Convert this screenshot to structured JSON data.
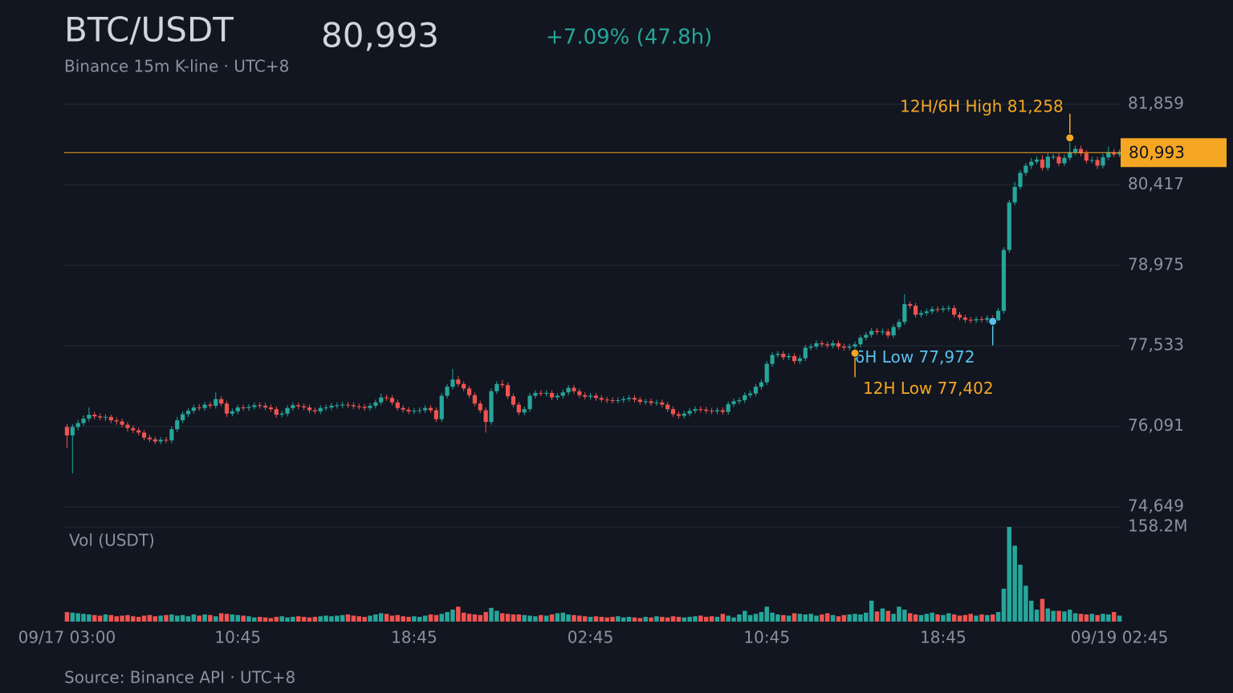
{
  "chart_data": {
    "type": "candlestick",
    "title": "BTC/USDT",
    "subtitle": "Binance 15m K-line · UTC+8",
    "last_price": {
      "value": 80993,
      "label": "80,993"
    },
    "change": "+7.09% (47.8h)",
    "source": "Source: Binance API · UTC+8",
    "colors": {
      "up": "#26a69a",
      "down": "#ef5350",
      "last": "#f5a623"
    },
    "grid": true,
    "ylim": [
      74649,
      81859
    ],
    "yticks": [
      {
        "value": 74649,
        "label": "74,649"
      },
      {
        "value": 76091,
        "label": "76,091"
      },
      {
        "value": 77533,
        "label": "77,533"
      },
      {
        "value": 78975,
        "label": "78,975"
      },
      {
        "value": 80417,
        "label": "80,417"
      },
      {
        "value": 81859,
        "label": "81,859"
      }
    ],
    "categories": [
      "09/17 03:00",
      null,
      null,
      null,
      null,
      null,
      null,
      null,
      null,
      null,
      null,
      null,
      null,
      null,
      null,
      null,
      null,
      null,
      null,
      null,
      null,
      null,
      null,
      null,
      null,
      null,
      null,
      null,
      null,
      null,
      null,
      "10:45",
      null,
      null,
      null,
      null,
      null,
      null,
      null,
      null,
      null,
      null,
      null,
      null,
      null,
      null,
      null,
      null,
      null,
      null,
      null,
      null,
      null,
      null,
      null,
      null,
      null,
      null,
      null,
      null,
      null,
      null,
      null,
      "18:45",
      null,
      null,
      null,
      null,
      null,
      null,
      null,
      null,
      null,
      null,
      null,
      null,
      null,
      null,
      null,
      null,
      null,
      null,
      null,
      null,
      null,
      null,
      null,
      null,
      null,
      null,
      null,
      null,
      null,
      null,
      null,
      "02:45",
      null,
      null,
      null,
      null,
      null,
      null,
      null,
      null,
      null,
      null,
      null,
      null,
      null,
      null,
      null,
      null,
      null,
      null,
      null,
      null,
      null,
      null,
      null,
      null,
      null,
      null,
      null,
      null,
      null,
      null,
      null,
      "10:45",
      null,
      null,
      null,
      null,
      null,
      null,
      null,
      null,
      null,
      null,
      null,
      null,
      null,
      null,
      null,
      null,
      null,
      null,
      null,
      null,
      null,
      null,
      null,
      null,
      null,
      null,
      null,
      null,
      null,
      null,
      null,
      "18:45",
      null,
      null,
      null,
      null,
      null,
      null,
      null,
      null,
      null,
      null,
      null,
      null,
      null,
      null,
      null,
      null,
      null,
      null,
      null,
      null,
      null,
      null,
      null,
      null,
      null,
      null,
      null,
      null,
      null,
      null,
      null,
      "09/19 02:45"
    ],
    "open": [
      76080,
      75930,
      76080,
      76150,
      76230,
      76300,
      76270,
      76250,
      76260,
      76200,
      76180,
      76120,
      76060,
      76020,
      75980,
      75890,
      75860,
      75820,
      75850,
      75840,
      76040,
      76200,
      76310,
      76370,
      76430,
      76420,
      76480,
      76460,
      76580,
      76500,
      76320,
      76360,
      76430,
      76420,
      76440,
      76470,
      76460,
      76430,
      76400,
      76300,
      76320,
      76420,
      76470,
      76450,
      76430,
      76380,
      76360,
      76420,
      76430,
      76460,
      76470,
      76480,
      76470,
      76450,
      76440,
      76420,
      76460,
      76520,
      76610,
      76600,
      76520,
      76420,
      76390,
      76360,
      76370,
      76380,
      76420,
      76380,
      76220,
      76640,
      76800,
      76930,
      76850,
      76770,
      76650,
      76500,
      76380,
      76170,
      76720,
      76850,
      76830,
      76630,
      76480,
      76340,
      76400,
      76640,
      76690,
      76680,
      76690,
      76610,
      76640,
      76700,
      76780,
      76720,
      76650,
      76620,
      76640,
      76600,
      76570,
      76560,
      76550,
      76560,
      76580,
      76600,
      76570,
      76530,
      76540,
      76510,
      76520,
      76480,
      76400,
      76310,
      76280,
      76320,
      76370,
      76400,
      76390,
      76370,
      76360,
      76380,
      76350,
      76490,
      76540,
      76560,
      76650,
      76680,
      76800,
      76880,
      77210,
      77370,
      77390,
      77330,
      77350,
      77260,
      77310,
      77500,
      77520,
      77580,
      77560,
      77540,
      77580,
      77520,
      77500,
      77520,
      77560,
      77680,
      77730,
      77800,
      77780,
      77790,
      77720,
      77870,
      77960,
      78280,
      78250,
      78090,
      78120,
      78150,
      78190,
      78180,
      78200,
      78210,
      78090,
      78040,
      78000,
      77990,
      78010,
      78000,
      78030,
      77990,
      78160,
      79250,
      80100,
      80380,
      80630,
      80760,
      80830,
      80870,
      80720,
      80920,
      80920,
      80800,
      80900,
      81000,
      81060,
      80980,
      80850,
      80860,
      80760,
      80910,
      81000,
      80960
    ],
    "high": [
      76140,
      76130,
      76210,
      76290,
      76430,
      76350,
      76320,
      76310,
      76300,
      76250,
      76230,
      76170,
      76110,
      76070,
      76030,
      75940,
      75910,
      75900,
      75900,
      76090,
      76260,
      76360,
      76420,
      76480,
      76490,
      76530,
      76530,
      76700,
      76630,
      76550,
      76410,
      76480,
      76480,
      76490,
      76520,
      76520,
      76510,
      76480,
      76450,
      76370,
      76470,
      76520,
      76520,
      76500,
      76480,
      76430,
      76470,
      76480,
      76510,
      76520,
      76530,
      76530,
      76520,
      76500,
      76490,
      76510,
      76570,
      76680,
      76660,
      76650,
      76570,
      76470,
      76440,
      76420,
      76430,
      76470,
      76470,
      76430,
      76690,
      76850,
      77120,
      76990,
      76900,
      76820,
      76700,
      76550,
      76430,
      76770,
      76900,
      76920,
      76880,
      76680,
      76530,
      76450,
      76690,
      76740,
      76740,
      76740,
      76740,
      76690,
      76750,
      76830,
      76830,
      76770,
      76700,
      76690,
      76690,
      76650,
      76620,
      76610,
      76610,
      76630,
      76650,
      76650,
      76620,
      76590,
      76590,
      76570,
      76570,
      76530,
      76450,
      76360,
      76370,
      76420,
      76450,
      76450,
      76440,
      76420,
      76430,
      76430,
      76540,
      76590,
      76610,
      76700,
      76730,
      76850,
      76930,
      77260,
      77420,
      77440,
      77440,
      77400,
      77400,
      77360,
      77550,
      77570,
      77630,
      77630,
      77610,
      77630,
      77630,
      77570,
      77570,
      77610,
      77730,
      77780,
      77850,
      77850,
      77840,
      77840,
      77920,
      78010,
      78460,
      78330,
      78300,
      78170,
      78200,
      78240,
      78240,
      78250,
      78260,
      78260,
      78140,
      78090,
      78050,
      78060,
      78060,
      78080,
      78080,
      78210,
      79300,
      80150,
      80470,
      80680,
      80810,
      80900,
      80930,
      80950,
      80980,
      80970,
      80980,
      80960,
      81258,
      81120,
      81120,
      81040,
      80920,
      80920,
      80970,
      81100,
      81060,
      81050
    ],
    "low": [
      75700,
      75250,
      76020,
      76100,
      76180,
      76220,
      76200,
      76190,
      76150,
      76120,
      76070,
      76000,
      75970,
      75930,
      75840,
      75810,
      75770,
      75770,
      75790,
      75790,
      75990,
      76150,
      76260,
      76320,
      76370,
      76370,
      76410,
      76410,
      76450,
      76260,
      76270,
      76310,
      76370,
      76370,
      76390,
      76410,
      76380,
      76350,
      76250,
      76250,
      76270,
      76370,
      76400,
      76380,
      76330,
      76310,
      76310,
      76370,
      76380,
      76410,
      76420,
      76420,
      76400,
      76390,
      76370,
      76370,
      76410,
      76470,
      76550,
      76470,
      76370,
      76340,
      76310,
      76310,
      76320,
      76330,
      76330,
      76170,
      76170,
      76590,
      76750,
      76800,
      76720,
      76600,
      76450,
      76330,
      75980,
      76120,
      76670,
      76780,
      76580,
      76430,
      76290,
      76290,
      76350,
      76590,
      76630,
      76630,
      76560,
      76560,
      76590,
      76650,
      76670,
      76600,
      76570,
      76570,
      76550,
      76520,
      76510,
      76500,
      76500,
      76510,
      76530,
      76520,
      76480,
      76480,
      76460,
      76460,
      76430,
      76350,
      76260,
      76230,
      76230,
      76270,
      76320,
      76340,
      76320,
      76310,
      76310,
      76300,
      76300,
      76440,
      76490,
      76510,
      76600,
      76630,
      76750,
      76830,
      77160,
      77320,
      77280,
      77280,
      77210,
      77210,
      77260,
      77450,
      77470,
      77510,
      77490,
      77490,
      77470,
      77450,
      77450,
      77402,
      77510,
      77630,
      77680,
      77730,
      77730,
      77670,
      77670,
      77820,
      77910,
      78200,
      78040,
      78040,
      78070,
      78100,
      78130,
      78130,
      78150,
      78040,
      77990,
      77950,
      77940,
      77940,
      77950,
      77950,
      77972,
      77980,
      78110,
      79200,
      80050,
      80330,
      80580,
      80700,
      80780,
      80670,
      80670,
      80870,
      80750,
      80750,
      80850,
      80950,
      80930,
      80800,
      80800,
      80700,
      80710,
      80860,
      80910,
      80910
    ],
    "close": [
      75930,
      76080,
      76150,
      76230,
      76300,
      76270,
      76250,
      76260,
      76200,
      76180,
      76120,
      76060,
      76020,
      75980,
      75890,
      75860,
      75820,
      75850,
      75840,
      76040,
      76200,
      76310,
      76370,
      76430,
      76420,
      76480,
      76460,
      76580,
      76500,
      76320,
      76360,
      76430,
      76420,
      76440,
      76470,
      76460,
      76430,
      76400,
      76300,
      76320,
      76420,
      76470,
      76450,
      76430,
      76380,
      76360,
      76420,
      76430,
      76460,
      76470,
      76480,
      76470,
      76450,
      76440,
      76420,
      76460,
      76520,
      76610,
      76600,
      76520,
      76420,
      76390,
      76360,
      76370,
      76380,
      76420,
      76380,
      76220,
      76640,
      76800,
      76930,
      76850,
      76770,
      76650,
      76500,
      76380,
      76170,
      76720,
      76850,
      76830,
      76630,
      76480,
      76340,
      76400,
      76640,
      76690,
      76680,
      76690,
      76610,
      76640,
      76700,
      76780,
      76720,
      76650,
      76620,
      76640,
      76600,
      76570,
      76560,
      76550,
      76560,
      76580,
      76600,
      76570,
      76530,
      76540,
      76510,
      76520,
      76480,
      76400,
      76310,
      76280,
      76320,
      76370,
      76400,
      76390,
      76370,
      76360,
      76380,
      76350,
      76490,
      76540,
      76560,
      76650,
      76680,
      76800,
      76880,
      77210,
      77370,
      77390,
      77330,
      77350,
      77260,
      77310,
      77500,
      77520,
      77580,
      77560,
      77540,
      77580,
      77520,
      77500,
      77520,
      77560,
      77680,
      77730,
      77800,
      77780,
      77790,
      77720,
      77870,
      77960,
      78280,
      78250,
      78090,
      78120,
      78150,
      78190,
      78180,
      78200,
      78210,
      78090,
      78040,
      78000,
      77990,
      78010,
      78000,
      78030,
      77990,
      78160,
      79250,
      80100,
      80380,
      80630,
      80760,
      80830,
      80870,
      80720,
      80920,
      80920,
      80800,
      80900,
      81000,
      81060,
      80980,
      80850,
      80860,
      80760,
      80910,
      81000,
      80960,
      80993
    ],
    "volume": {
      "label": "Vol (USDT)",
      "ylim": [
        0,
        158.2
      ],
      "yticks": [
        {
          "value": 158.2,
          "label": "158.2M"
        }
      ],
      "values": [
        16,
        15,
        14,
        13,
        12,
        11,
        10,
        12,
        11,
        9,
        10,
        11,
        9,
        8,
        10,
        11,
        9,
        10,
        11,
        12,
        10,
        11,
        9,
        12,
        10,
        12,
        11,
        9,
        14,
        13,
        12,
        11,
        10,
        9,
        7,
        8,
        7,
        6,
        8,
        9,
        7,
        8,
        9,
        8,
        7,
        8,
        9,
        10,
        9,
        10,
        11,
        12,
        10,
        9,
        8,
        10,
        12,
        14,
        13,
        10,
        11,
        9,
        8,
        9,
        8,
        10,
        12,
        11,
        13,
        16,
        20,
        25,
        15,
        13,
        12,
        11,
        16,
        23,
        18,
        14,
        13,
        12,
        12,
        11,
        10,
        9,
        11,
        10,
        12,
        14,
        15,
        12,
        11,
        10,
        9,
        8,
        9,
        8,
        7,
        8,
        9,
        7,
        8,
        7,
        6,
        8,
        7,
        9,
        8,
        7,
        9,
        8,
        7,
        8,
        9,
        10,
        8,
        9,
        8,
        13,
        10,
        7,
        12,
        18,
        11,
        13,
        16,
        25,
        15,
        12,
        11,
        10,
        14,
        13,
        12,
        13,
        10,
        12,
        14,
        11,
        9,
        11,
        12,
        13,
        12,
        15,
        35,
        17,
        22,
        18,
        13,
        25,
        20,
        14,
        12,
        11,
        13,
        15,
        12,
        11,
        14,
        12,
        10,
        11,
        13,
        10,
        12,
        11,
        12,
        16,
        55,
        158.2,
        127,
        95,
        60,
        35,
        20,
        38,
        22,
        18,
        18,
        17,
        20,
        14,
        13,
        12,
        13,
        11,
        13,
        12,
        16,
        10
      ]
    },
    "annotations": [
      {
        "text": "12H/6H High 81,258",
        "value": 81258,
        "kind": "high",
        "color": "#f5a623"
      },
      {
        "text": "6H Low 77,972",
        "value": 77972,
        "kind": "low",
        "color": "#5bc0eb"
      },
      {
        "text": "12H Low 77,402",
        "value": 77402,
        "kind": "low",
        "color": "#f5a623"
      }
    ]
  }
}
